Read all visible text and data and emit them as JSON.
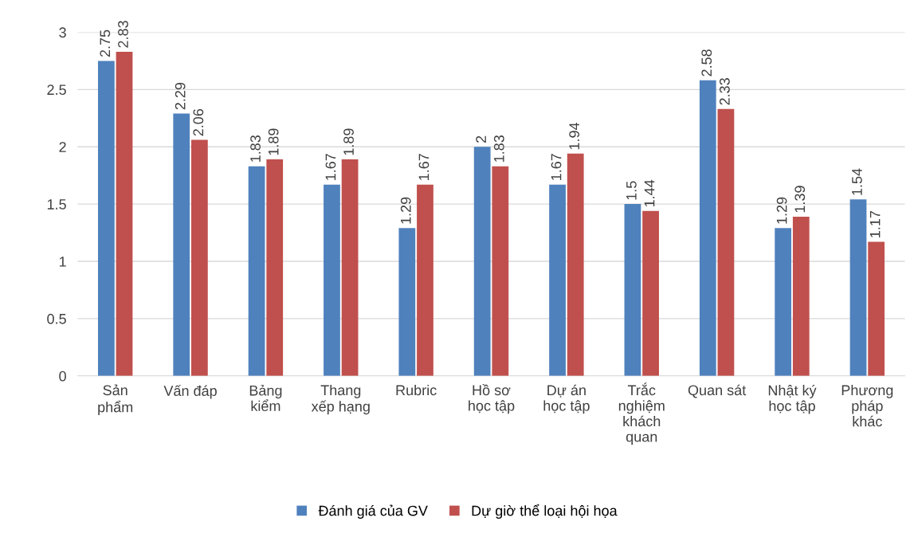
{
  "chart_data": {
    "type": "bar",
    "categories": [
      "Sản\nphẩm",
      "Vấn đáp",
      "Bảng\nkiểm",
      "Thang\nxếp hạng",
      "Rubric",
      "Hồ sơ\nhọc tập",
      "Dự án\nhọc tập",
      "Trắc\nnghiệm\nkhách\nquan",
      "Quan sát",
      "Nhật ký\nhọc tập",
      "Phương\npháp\nkhác"
    ],
    "series": [
      {
        "name": "Đánh giá của GV",
        "color": "#4f81bd",
        "values": [
          2.75,
          2.29,
          1.83,
          1.67,
          1.29,
          2,
          1.67,
          1.5,
          2.58,
          1.29,
          1.54
        ]
      },
      {
        "name": "Dự giờ thể loại hội họa",
        "color": "#c0504d",
        "values": [
          2.83,
          2.06,
          1.89,
          1.89,
          1.67,
          1.83,
          1.94,
          1.44,
          2.33,
          1.39,
          1.17
        ]
      }
    ],
    "ylim": [
      0,
      3
    ],
    "yticks": [
      0,
      0.5,
      1,
      1.5,
      2,
      2.5,
      3
    ],
    "grid": "y",
    "legend": "bottom",
    "data_labels": true
  }
}
